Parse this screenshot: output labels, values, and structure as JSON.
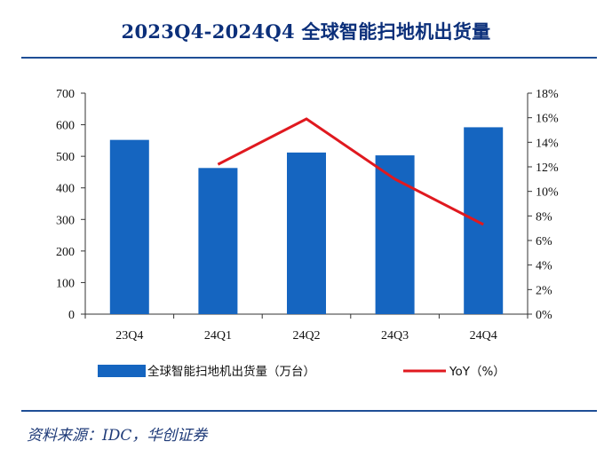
{
  "header": {
    "title": "2023Q4-2024Q4 全球智能扫地机出货量"
  },
  "footer": {
    "source": "资料来源：IDC，华创证券"
  },
  "chart_data": {
    "type": "bar+line",
    "title": "2023Q4-2024Q4 全球智能扫地机出货量",
    "categories": [
      "23Q4",
      "24Q1",
      "24Q2",
      "24Q3",
      "24Q4"
    ],
    "series": [
      {
        "name": "全球智能扫地机出货量（万台）",
        "type": "bar",
        "axis": "left",
        "values": [
          552,
          463,
          512,
          503,
          592
        ],
        "color": "#1565c0"
      },
      {
        "name": "YoY（%）",
        "type": "line",
        "axis": "right",
        "values": [
          null,
          12.2,
          15.9,
          11.0,
          7.3
        ],
        "color": "#e0191f"
      }
    ],
    "ylim_left": [
      0,
      700
    ],
    "yticks_left": [
      "0",
      "100",
      "200",
      "300",
      "400",
      "500",
      "600",
      "700"
    ],
    "ylim_right": [
      0,
      18
    ],
    "yticks_right": [
      "0%",
      "2%",
      "4%",
      "6%",
      "8%",
      "10%",
      "12%",
      "14%",
      "16%",
      "18%"
    ],
    "grid": false,
    "legend_position": "bottom"
  }
}
